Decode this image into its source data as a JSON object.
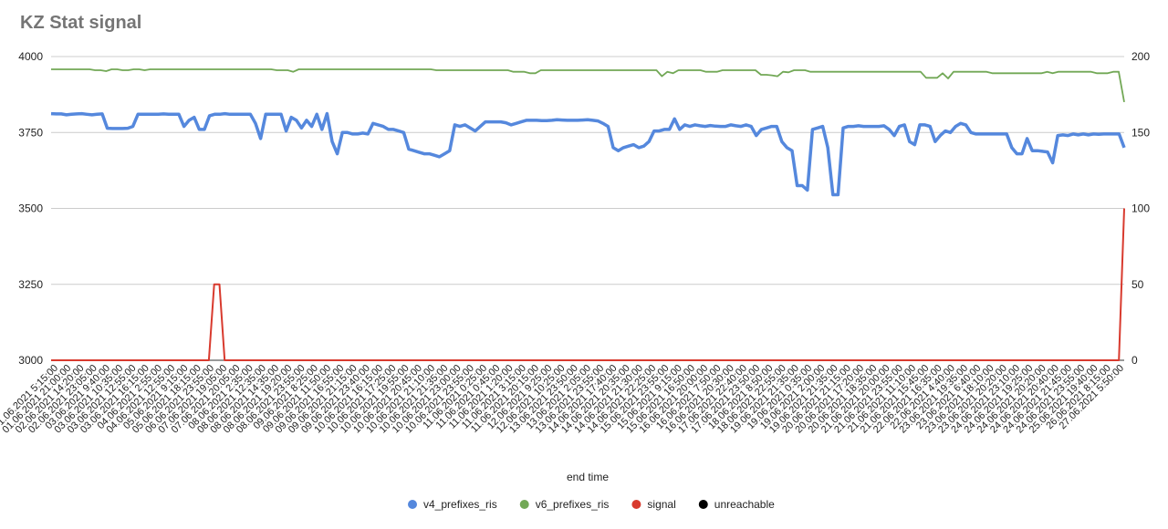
{
  "chart_data": {
    "type": "line",
    "title": "KZ Stat signal",
    "xlabel": "end time",
    "ylabel_left": "",
    "ylabel_right": "",
    "ylim_left": [
      3000,
      4000
    ],
    "ylim_right": [
      0,
      200
    ],
    "yticks_left": [
      "3000",
      "3250",
      "3500",
      "3750",
      "4000"
    ],
    "yticks_right": [
      "0",
      "50",
      "100",
      "150",
      "200"
    ],
    "grid": true,
    "legend_position": "bottom",
    "x_tick_labels": [
      "01.06.2021 5:15:00",
      "01.06.2021 21:00:00",
      "02.06.2021 14:20:00",
      "02.06.2021 23:05:00",
      "03.06.2021 9:40:00",
      "03.06.2021 10:35:00",
      "03.06.2021 12:55:00",
      "03.06.2021 16:15:00",
      "04.06.2021 2:55:00",
      "04.06.2021 12:55:00",
      "05.06.2021 9:15:00",
      "05.06.2021 18:15:00",
      "06.06.2021 23:55:00",
      "07.06.2021 19:05:00",
      "07.06.2021 20:05:00",
      "08.06.2021 2:35:00",
      "08.06.2021 12:35:00",
      "08.06.2021 14:35:00",
      "08.06.2021 19:20:00",
      "08.06.2021 23:55:00",
      "09.06.2021 8:25:00",
      "09.06.2021 11:50:00",
      "09.06.2021 16:55:00",
      "09.06.2021 21:15:00",
      "09.06.2021 23:40:00",
      "10.06.2021 16:15:00",
      "10.06.2021 17:25:00",
      "10.06.2021 19:55:00",
      "10.06.2021 20:45:00",
      "10.06.2021 21:10:00",
      "10.06.2021 21:35:00",
      "10.06.2021 23:00:00",
      "10.06.2021 23:55:00",
      "11.06.2021 0:25:00",
      "11.06.2021 0:45:00",
      "11.06.2021 1:20:00",
      "11.06.2021 3:15:00",
      "11.06.2021 20:15:00",
      "12.06.2021 9:25:00",
      "12.06.2021 10:25:00",
      "13.06.2021 23:50:00",
      "13.06.2021 2:05:00",
      "13.06.2021 23:55:00",
      "14.06.2021 17:40:00",
      "14.06.2021 20:35:00",
      "14.06.2021 21:30:00",
      "14.06.2021 22:25:00",
      "15.06.2021 23:55:00",
      "15.06.2021 9:15:00",
      "15.06.2021 16:50:00",
      "16.06.2021 20:00:00",
      "16.06.2021 7:50:00",
      "16.06.2021 20:30:00",
      "17.06.2021 22:40:00",
      "17.06.2021 23:50:00",
      "18.06.2021 8:50:00",
      "18.06.2021 22:55:00",
      "19.06.2021 21:35:00",
      "19.06.2021 0:35:00",
      "19.06.2021 2:00:00",
      "19.06.2021 21:35:00",
      "20.06.2021 21:15:00",
      "20.06.2021 17:20:00",
      "20.06.2021 18:35:00",
      "21.06.2021 20:00:00",
      "21.06.2021 23:55:00",
      "21.06.2021 11:10:00",
      "21.06.2021 15:45:00",
      "22.06.2021 16:35:00",
      "22.06.2021 4:40:00",
      "23.06.2021 19:35:00",
      "23.06.2021 6:40:00",
      "23.06.2021 18:10:00",
      "23.06.2021 20:20:00",
      "24.06.2021 23:10:00",
      "24.06.2021 19:25:00",
      "24.06.2021 20:20:00",
      "24.06.2021 20:40:00",
      "24.06.2021 21:45:00",
      "24.06.2021 23:55:00",
      "25.06.2021 19:40:00",
      "26.06.2021 8:15:00",
      "27.06.2021 5:50:00"
    ],
    "series": [
      {
        "name": "v4_prefixes_ris",
        "axis": "left",
        "color": "#5588dd",
        "values": [
          3812,
          3811,
          3811,
          3808,
          3810,
          3811,
          3812,
          3810,
          3808,
          3810,
          3811,
          3764,
          3763,
          3763,
          3763,
          3764,
          3770,
          3810,
          3810,
          3810,
          3810,
          3810,
          3811,
          3810,
          3810,
          3810,
          3770,
          3790,
          3800,
          3760,
          3760,
          3805,
          3810,
          3810,
          3812,
          3810,
          3810,
          3810,
          3810,
          3810,
          3780,
          3730,
          3810,
          3810,
          3810,
          3810,
          3755,
          3800,
          3790,
          3765,
          3790,
          3770,
          3810,
          3760,
          3812,
          3720,
          3680,
          3750,
          3750,
          3745,
          3745,
          3748,
          3745,
          3780,
          3775,
          3770,
          3760,
          3760,
          3755,
          3750,
          3695,
          3690,
          3685,
          3680,
          3680,
          3675,
          3670,
          3680,
          3690,
          3775,
          3770,
          3775,
          3765,
          3755,
          3770,
          3785,
          3785,
          3785,
          3785,
          3782,
          3775,
          3780,
          3785,
          3790,
          3790,
          3790,
          3789,
          3789,
          3790,
          3792,
          3791,
          3790,
          3790,
          3790,
          3791,
          3792,
          3790,
          3788,
          3780,
          3770,
          3700,
          3690,
          3700,
          3705,
          3710,
          3700,
          3705,
          3720,
          3755,
          3755,
          3760,
          3760,
          3795,
          3760,
          3775,
          3770,
          3775,
          3772,
          3770,
          3773,
          3771,
          3770,
          3770,
          3775,
          3772,
          3770,
          3775,
          3770,
          3740,
          3760,
          3765,
          3770,
          3770,
          3720,
          3700,
          3690,
          3575,
          3575,
          3560,
          3760,
          3765,
          3770,
          3700,
          3545,
          3545,
          3765,
          3770,
          3770,
          3772,
          3770,
          3770,
          3770,
          3770,
          3772,
          3760,
          3740,
          3770,
          3775,
          3720,
          3710,
          3775,
          3775,
          3770,
          3720,
          3740,
          3755,
          3750,
          3770,
          3780,
          3775,
          3750,
          3745,
          3745,
          3745,
          3745,
          3745,
          3745,
          3745,
          3700,
          3680,
          3680,
          3730,
          3690,
          3690,
          3688,
          3686,
          3650,
          3740,
          3742,
          3740,
          3745,
          3742,
          3745,
          3742,
          3745,
          3744,
          3745,
          3745,
          3745,
          3745,
          3700
        ]
      },
      {
        "name": "v6_prefixes_ris",
        "axis": "left",
        "color": "#72a856",
        "values": [
          3958,
          3958,
          3958,
          3958,
          3958,
          3958,
          3958,
          3958,
          3955,
          3955,
          3952,
          3958,
          3958,
          3955,
          3955,
          3958,
          3958,
          3955,
          3958,
          3958,
          3958,
          3958,
          3958,
          3958,
          3958,
          3958,
          3958,
          3958,
          3958,
          3958,
          3958,
          3958,
          3958,
          3958,
          3958,
          3958,
          3958,
          3958,
          3958,
          3958,
          3958,
          3955,
          3955,
          3955,
          3950,
          3958,
          3958,
          3958,
          3958,
          3958,
          3958,
          3958,
          3958,
          3958,
          3958,
          3958,
          3958,
          3958,
          3958,
          3958,
          3958,
          3958,
          3958,
          3958,
          3958,
          3958,
          3958,
          3958,
          3958,
          3958,
          3955,
          3955,
          3955,
          3955,
          3955,
          3955,
          3955,
          3955,
          3955,
          3955,
          3955,
          3955,
          3955,
          3955,
          3950,
          3950,
          3950,
          3945,
          3945,
          3955,
          3955,
          3955,
          3955,
          3955,
          3955,
          3955,
          3955,
          3955,
          3955,
          3955,
          3955,
          3955,
          3955,
          3955,
          3955,
          3955,
          3955,
          3955,
          3955,
          3955,
          3955,
          3935,
          3950,
          3945,
          3955,
          3955,
          3955,
          3955,
          3955,
          3950,
          3950,
          3950,
          3955,
          3955,
          3955,
          3955,
          3955,
          3955,
          3955,
          3940,
          3940,
          3938,
          3935,
          3950,
          3948,
          3955,
          3955,
          3955,
          3950,
          3950,
          3950,
          3950,
          3950,
          3950,
          3950,
          3950,
          3950,
          3950,
          3950,
          3950,
          3950,
          3950,
          3950,
          3950,
          3950,
          3950,
          3950,
          3950,
          3950,
          3930,
          3930,
          3930,
          3945,
          3928,
          3950,
          3950,
          3950,
          3950,
          3950,
          3950,
          3950,
          3945,
          3945,
          3945,
          3945,
          3945,
          3945,
          3945,
          3945,
          3945,
          3945,
          3950,
          3945,
          3950,
          3950,
          3950,
          3950,
          3950,
          3950,
          3950,
          3945,
          3945,
          3945,
          3950,
          3950,
          3850
        ]
      },
      {
        "name": "signal",
        "axis": "right",
        "color": "#d83a2e",
        "values": [
          0,
          0,
          0,
          0,
          0,
          0,
          0,
          0,
          0,
          0,
          0,
          0,
          0,
          0,
          0,
          0,
          0,
          0,
          0,
          0,
          0,
          0,
          0,
          0,
          0,
          0,
          0,
          0,
          0,
          0,
          0,
          50,
          50,
          0,
          0,
          0,
          0,
          0,
          0,
          0,
          0,
          0,
          0,
          0,
          0,
          0,
          0,
          0,
          0,
          0,
          0,
          0,
          0,
          0,
          0,
          0,
          0,
          0,
          0,
          0,
          0,
          0,
          0,
          0,
          0,
          0,
          0,
          0,
          0,
          0,
          0,
          0,
          0,
          0,
          0,
          0,
          0,
          0,
          0,
          0,
          0,
          0,
          0,
          0,
          0,
          0,
          0,
          0,
          0,
          0,
          0,
          0,
          0,
          0,
          0,
          0,
          0,
          0,
          0,
          0,
          0,
          0,
          0,
          0,
          0,
          0,
          0,
          0,
          0,
          0,
          0,
          0,
          0,
          0,
          0,
          0,
          0,
          0,
          0,
          0,
          0,
          0,
          0,
          0,
          0,
          0,
          0,
          0,
          0,
          0,
          0,
          0,
          0,
          0,
          0,
          0,
          0,
          0,
          0,
          0,
          0,
          0,
          0,
          0,
          0,
          0,
          0,
          0,
          0,
          0,
          0,
          0,
          0,
          0,
          0,
          0,
          0,
          0,
          0,
          0,
          0,
          0,
          0,
          0,
          0,
          0,
          0,
          0,
          0,
          0,
          0,
          0,
          0,
          0,
          0,
          0,
          0,
          0,
          0,
          0,
          0,
          0,
          0,
          0,
          0,
          0,
          0,
          0,
          0,
          0,
          0,
          0,
          0,
          0,
          0,
          0,
          0,
          0,
          0,
          0,
          0,
          0,
          0,
          0,
          100
        ]
      },
      {
        "name": "unreachable",
        "axis": "right",
        "color": "#000000",
        "marker": "circle",
        "values": []
      }
    ]
  }
}
